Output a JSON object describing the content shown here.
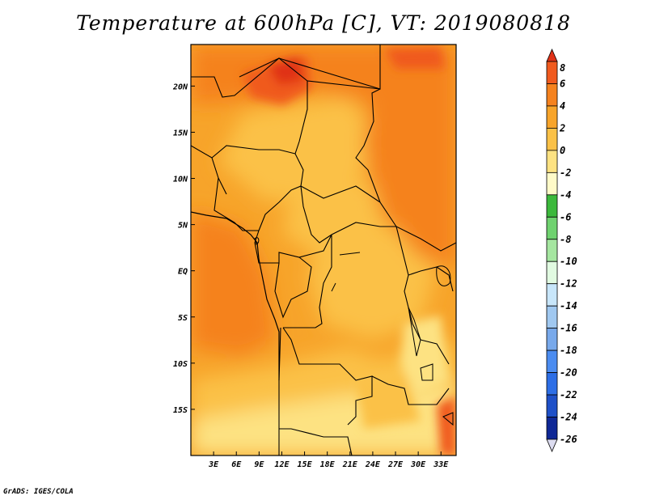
{
  "title": "Temperature at 600hPa [C], VT: 2019080818",
  "credit": "GrADS: IGES/COLA",
  "chart_data": {
    "type": "heatmap",
    "variable": "Temperature at 600hPa",
    "units": "C",
    "valid_time": "2019080818",
    "lon_range": [
      0,
      35
    ],
    "lat_range": [
      -20,
      24.5
    ],
    "x_ticks": [
      "3E",
      "6E",
      "9E",
      "12E",
      "15E",
      "18E",
      "21E",
      "24E",
      "27E",
      "30E",
      "33E"
    ],
    "y_ticks": [
      "20N",
      "15N",
      "10N",
      "5N",
      "EQ",
      "5S",
      "10S",
      "15S"
    ],
    "colorbar": {
      "labels": [
        "8",
        "6",
        "4",
        "2",
        "0",
        "-2",
        "-4",
        "-6",
        "-8",
        "-10",
        "-12",
        "-14",
        "-16",
        "-18",
        "-20",
        "-22",
        "-24",
        "-26"
      ],
      "colors": [
        "#e03218",
        "#f05a1e",
        "#f5821e",
        "#f7a42a",
        "#fbc147",
        "#fde282",
        "#fffac8",
        "#3cb93c",
        "#6fd26f",
        "#a5e6a0",
        "#e1fae1",
        "#c8e6fa",
        "#a0c8f0",
        "#78a9eb",
        "#4b8cf0",
        "#2d6ee6",
        "#1e50c8",
        "#0f2896",
        "#0a0a6e"
      ]
    }
  }
}
